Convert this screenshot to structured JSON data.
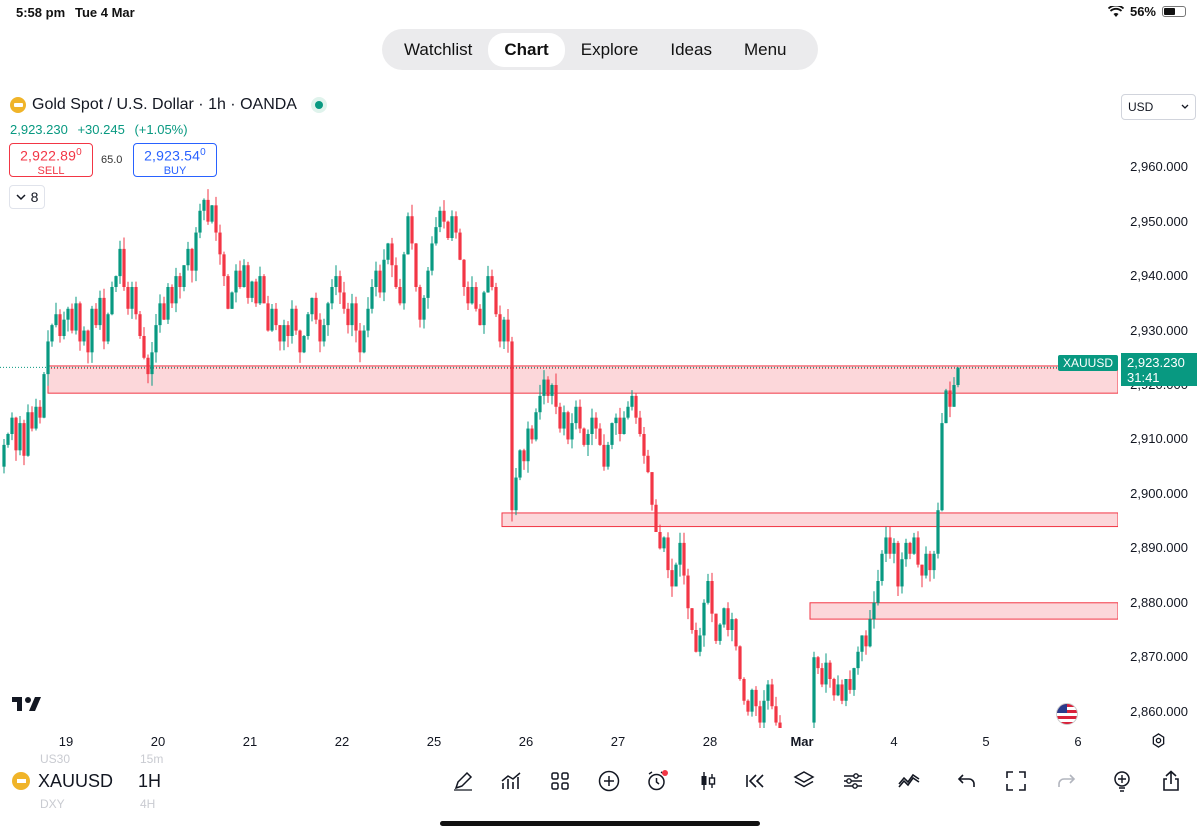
{
  "status": {
    "time": "5:58 pm",
    "date": "Tue 4 Mar",
    "battery": "56%",
    "battery_level": 0.56
  },
  "nav": {
    "tabs": [
      {
        "label": "Watchlist",
        "active": false
      },
      {
        "label": "Chart",
        "active": true
      },
      {
        "label": "Explore",
        "active": false
      },
      {
        "label": "Ideas",
        "active": false
      },
      {
        "label": "Menu",
        "active": false
      }
    ]
  },
  "symbol": {
    "title": "Gold Spot / U.S. Dollar · 1h · OANDA",
    "last": "2,923.230",
    "change": "+30.245",
    "change_pct": "(+1.05%)",
    "sell_price": "2,922.89",
    "sell_sup": "0",
    "sell_label": "SELL",
    "buy_price": "2,923.54",
    "buy_sup": "0",
    "buy_label": "BUY",
    "spread": "65.0",
    "indicator_count": "8",
    "currency": "USD"
  },
  "chart_data": {
    "type": "candlestick",
    "y_ticks": [
      "2,960.000",
      "2,950.000",
      "2,940.000",
      "2,930.000",
      "2,920.000",
      "2,910.000",
      "2,900.000",
      "2,890.000",
      "2,880.000",
      "2,870.000",
      "2,860.000"
    ],
    "ylim": [
      2857,
      2965
    ],
    "x_ticks": [
      "19",
      "20",
      "21",
      "22",
      "25",
      "26",
      "27",
      "28",
      "Mar",
      "4",
      "5",
      "6"
    ],
    "bold_x_tick": "Mar",
    "last_price": 2923.23,
    "symbol_tag": "XAUUSD",
    "price_tag": "2,923.230",
    "countdown": "31:41",
    "zones": [
      {
        "from": 2918.5,
        "to": 2923.5
      },
      {
        "from": 2894,
        "to": 2896.5
      },
      {
        "from": 2877,
        "to": 2880
      },
      {
        "from": 2918.5,
        "to": 2923.5
      }
    ],
    "path": [
      [
        0,
        2905
      ],
      [
        4,
        2909
      ],
      [
        8,
        2911
      ],
      [
        12,
        2914
      ],
      [
        16,
        2908
      ],
      [
        20,
        2913
      ],
      [
        24,
        2907
      ],
      [
        28,
        2915
      ],
      [
        32,
        2912
      ],
      [
        36,
        2916
      ],
      [
        40,
        2914
      ],
      [
        44,
        2922
      ],
      [
        48,
        2928
      ],
      [
        52,
        2931
      ],
      [
        56,
        2933
      ],
      [
        60,
        2929
      ],
      [
        64,
        2932
      ],
      [
        68,
        2934
      ],
      [
        72,
        2930
      ],
      [
        76,
        2935
      ],
      [
        80,
        2928
      ],
      [
        84,
        2930
      ],
      [
        88,
        2926
      ],
      [
        92,
        2934
      ],
      [
        96,
        2931
      ],
      [
        100,
        2936
      ],
      [
        104,
        2928
      ],
      [
        108,
        2933
      ],
      [
        112,
        2938
      ],
      [
        116,
        2940
      ],
      [
        120,
        2945
      ],
      [
        124,
        2938
      ],
      [
        128,
        2934
      ],
      [
        132,
        2938
      ],
      [
        136,
        2933
      ],
      [
        140,
        2929
      ],
      [
        144,
        2925
      ],
      [
        148,
        2922
      ],
      [
        152,
        2926
      ],
      [
        156,
        2931
      ],
      [
        160,
        2935
      ],
      [
        164,
        2932
      ],
      [
        168,
        2938
      ],
      [
        172,
        2935
      ],
      [
        176,
        2940
      ],
      [
        180,
        2938
      ],
      [
        184,
        2942
      ],
      [
        188,
        2945
      ],
      [
        192,
        2941
      ],
      [
        196,
        2948
      ],
      [
        200,
        2952
      ],
      [
        204,
        2954
      ],
      [
        208,
        2950
      ],
      [
        212,
        2953
      ],
      [
        216,
        2948
      ],
      [
        220,
        2944
      ],
      [
        224,
        2940
      ],
      [
        228,
        2934
      ],
      [
        232,
        2937
      ],
      [
        236,
        2941
      ],
      [
        240,
        2938
      ],
      [
        244,
        2942
      ],
      [
        248,
        2936
      ],
      [
        252,
        2939
      ],
      [
        256,
        2935
      ],
      [
        260,
        2940
      ],
      [
        264,
        2935
      ],
      [
        268,
        2930
      ],
      [
        272,
        2934
      ],
      [
        276,
        2931
      ],
      [
        280,
        2928
      ],
      [
        284,
        2931
      ],
      [
        288,
        2929
      ],
      [
        292,
        2934
      ],
      [
        296,
        2930
      ],
      [
        300,
        2926
      ],
      [
        304,
        2929
      ],
      [
        308,
        2933
      ],
      [
        312,
        2936
      ],
      [
        316,
        2932
      ],
      [
        320,
        2928
      ],
      [
        324,
        2931
      ],
      [
        328,
        2935
      ],
      [
        332,
        2938
      ],
      [
        336,
        2940
      ],
      [
        340,
        2937
      ],
      [
        344,
        2934
      ],
      [
        348,
        2931
      ],
      [
        352,
        2935
      ],
      [
        356,
        2930
      ],
      [
        360,
        2926
      ],
      [
        364,
        2930
      ],
      [
        368,
        2934
      ],
      [
        372,
        2938
      ],
      [
        376,
        2941
      ],
      [
        380,
        2937
      ],
      [
        384,
        2943
      ],
      [
        388,
        2946
      ],
      [
        392,
        2942
      ],
      [
        396,
        2938
      ],
      [
        400,
        2935
      ],
      [
        404,
        2944
      ],
      [
        408,
        2951
      ],
      [
        412,
        2946
      ],
      [
        416,
        2938
      ],
      [
        420,
        2932
      ],
      [
        424,
        2936
      ],
      [
        428,
        2941
      ],
      [
        432,
        2946
      ],
      [
        436,
        2949
      ],
      [
        440,
        2952
      ],
      [
        444,
        2950
      ],
      [
        448,
        2947
      ],
      [
        452,
        2951
      ],
      [
        456,
        2948
      ],
      [
        460,
        2943
      ],
      [
        464,
        2938
      ],
      [
        468,
        2935
      ],
      [
        472,
        2938
      ],
      [
        476,
        2934
      ],
      [
        480,
        2931
      ],
      [
        484,
        2937
      ],
      [
        488,
        2940
      ],
      [
        492,
        2938
      ],
      [
        496,
        2933
      ],
      [
        500,
        2928
      ],
      [
        504,
        2932
      ],
      [
        508,
        2928
      ],
      [
        512,
        2897
      ],
      [
        516,
        2903
      ],
      [
        520,
        2908
      ],
      [
        524,
        2906
      ],
      [
        528,
        2912
      ],
      [
        532,
        2910
      ],
      [
        536,
        2915
      ],
      [
        540,
        2918
      ],
      [
        544,
        2921
      ],
      [
        548,
        2918
      ],
      [
        552,
        2920
      ],
      [
        556,
        2916
      ],
      [
        560,
        2912
      ],
      [
        564,
        2915
      ],
      [
        568,
        2910
      ],
      [
        572,
        2913
      ],
      [
        576,
        2916
      ],
      [
        580,
        2912
      ],
      [
        584,
        2909
      ],
      [
        588,
        2911
      ],
      [
        592,
        2914
      ],
      [
        596,
        2912
      ],
      [
        600,
        2909
      ],
      [
        604,
        2905
      ],
      [
        608,
        2909
      ],
      [
        612,
        2913
      ],
      [
        616,
        2914
      ],
      [
        620,
        2911
      ],
      [
        624,
        2914
      ],
      [
        628,
        2916
      ],
      [
        632,
        2918
      ],
      [
        636,
        2914
      ],
      [
        640,
        2911
      ],
      [
        644,
        2907
      ],
      [
        648,
        2904
      ],
      [
        652,
        2898
      ],
      [
        656,
        2893
      ],
      [
        660,
        2890
      ],
      [
        664,
        2892
      ],
      [
        668,
        2886
      ],
      [
        672,
        2883
      ],
      [
        676,
        2887
      ],
      [
        680,
        2891
      ],
      [
        684,
        2885
      ],
      [
        688,
        2879
      ],
      [
        692,
        2875
      ],
      [
        696,
        2871
      ],
      [
        700,
        2874
      ],
      [
        704,
        2880
      ],
      [
        708,
        2884
      ],
      [
        712,
        2878
      ],
      [
        716,
        2873
      ],
      [
        720,
        2876
      ],
      [
        724,
        2879
      ],
      [
        728,
        2875
      ],
      [
        732,
        2877
      ],
      [
        736,
        2872
      ],
      [
        740,
        2866
      ],
      [
        744,
        2862
      ],
      [
        748,
        2860
      ],
      [
        752,
        2864
      ],
      [
        756,
        2861
      ],
      [
        760,
        2858
      ],
      [
        764,
        2862
      ],
      [
        768,
        2865
      ],
      [
        772,
        2861
      ],
      [
        776,
        2858
      ],
      [
        780,
        2857
      ],
      [
        810,
        2858
      ],
      [
        814,
        2870
      ],
      [
        818,
        2868
      ],
      [
        822,
        2865
      ],
      [
        826,
        2869
      ],
      [
        830,
        2866
      ],
      [
        834,
        2863
      ],
      [
        838,
        2865
      ],
      [
        842,
        2862
      ],
      [
        846,
        2866
      ],
      [
        850,
        2864
      ],
      [
        854,
        2868
      ],
      [
        858,
        2871
      ],
      [
        862,
        2874
      ],
      [
        866,
        2872
      ],
      [
        870,
        2877
      ],
      [
        874,
        2880
      ],
      [
        878,
        2884
      ],
      [
        882,
        2889
      ],
      [
        886,
        2892
      ],
      [
        890,
        2889
      ],
      [
        894,
        2891
      ],
      [
        898,
        2883
      ],
      [
        902,
        2888
      ],
      [
        906,
        2891
      ],
      [
        910,
        2889
      ],
      [
        914,
        2892
      ],
      [
        918,
        2887
      ],
      [
        922,
        2885
      ],
      [
        926,
        2889
      ],
      [
        930,
        2886
      ],
      [
        934,
        2889
      ],
      [
        938,
        2897
      ],
      [
        942,
        2913
      ],
      [
        946,
        2919
      ],
      [
        950,
        2916
      ],
      [
        954,
        2920
      ],
      [
        958,
        2923.2
      ]
    ]
  },
  "bottom": {
    "symbol": "XAUUSD",
    "interval": "1H",
    "ghost": [
      "US30",
      "15m",
      "DXY",
      "4H"
    ]
  }
}
